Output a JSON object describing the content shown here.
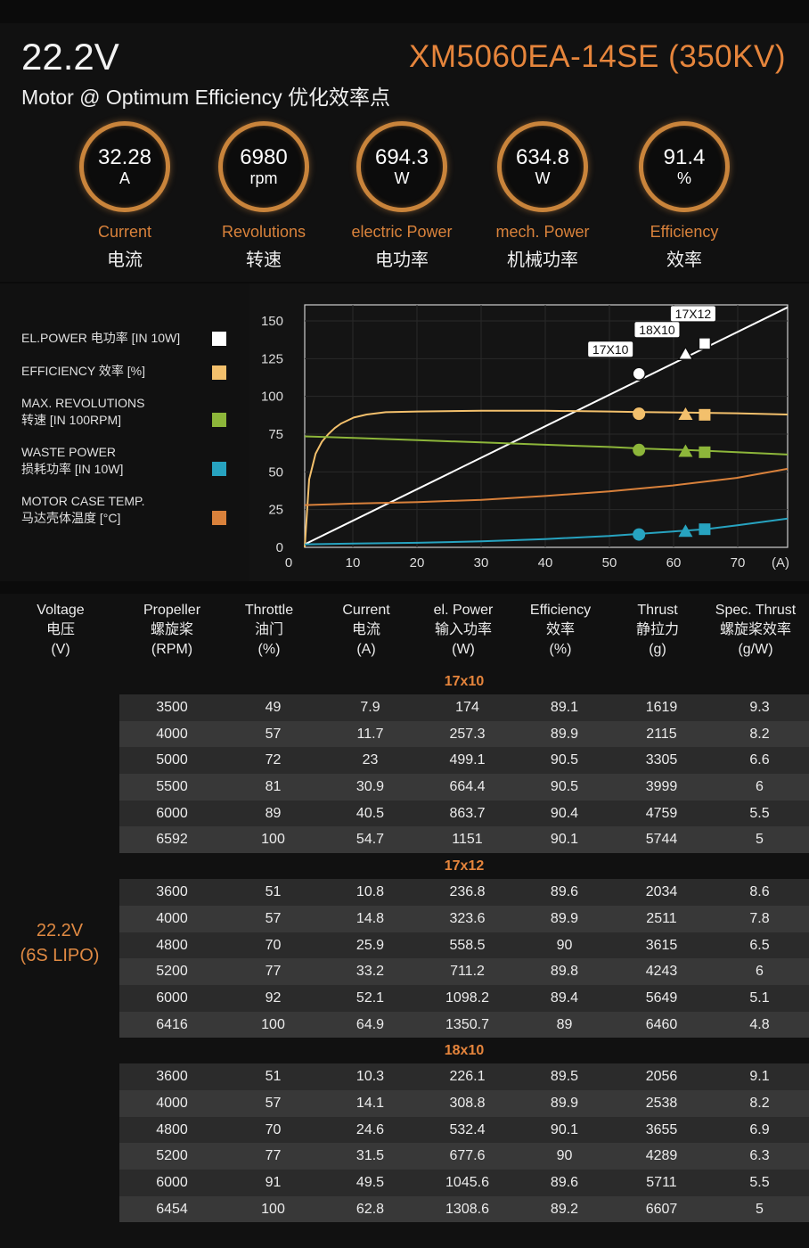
{
  "header": {
    "voltage": "22.2V",
    "subtitle": "Motor @ Optimum Efficiency  优化效率点",
    "model": "XM5060EA-14SE (350KV)"
  },
  "metrics": [
    {
      "value": "32.28",
      "unit": "A",
      "en": "Current",
      "cn": "电流"
    },
    {
      "value": "6980",
      "unit": "rpm",
      "en": "Revolutions",
      "cn": "转速"
    },
    {
      "value": "694.3",
      "unit": "W",
      "en": "electric Power",
      "cn": "电功率"
    },
    {
      "value": "634.8",
      "unit": "W",
      "en": "mech. Power",
      "cn": "机械功率"
    },
    {
      "value": "91.4",
      "unit": "%",
      "en": "Efficiency",
      "cn": "效率"
    }
  ],
  "legend": [
    {
      "line1": "EL.POWER 电功率 [IN 10W]",
      "line2": "",
      "color": "#ffffff"
    },
    {
      "line1": "EFFICIENCY 效率 [%]",
      "line2": "",
      "color": "#f3c06c"
    },
    {
      "line1": "MAX. REVOLUTIONS",
      "line2": "转速 [IN 100RPM]",
      "color": "#8db63a"
    },
    {
      "line1": "WASTE POWER",
      "line2": "损耗功率 [IN 10W]",
      "color": "#27a3c0"
    },
    {
      "line1": "MOTOR CASE TEMP.",
      "line2": "马达壳体温度 [°C]",
      "color": "#d9813b"
    }
  ],
  "chart_data": {
    "type": "line",
    "xlabel": "(A)",
    "ylabel": "",
    "xlim": [
      0,
      78
    ],
    "ylim": [
      0,
      160
    ],
    "x_ticks": [
      0,
      10,
      20,
      30,
      40,
      50,
      60,
      70
    ],
    "y_ticks": [
      0,
      25,
      50,
      75,
      100,
      125,
      150
    ],
    "grid": true,
    "series": [
      {
        "name": "EL.POWER 电功率 [IN 10W]",
        "color": "#ffffff",
        "x": [
          2.3,
          78
        ],
        "y": [
          2,
          159
        ]
      },
      {
        "name": "EFFICIENCY 效率 [%]",
        "color": "#f3c06c",
        "x": [
          2.3,
          3,
          4,
          5,
          6,
          7,
          8,
          10,
          12,
          15,
          20,
          30,
          40,
          50,
          55,
          62,
          65,
          70,
          78
        ],
        "y": [
          0,
          45,
          62,
          70,
          75,
          79,
          82,
          86,
          88,
          89.5,
          90,
          90.5,
          90.5,
          90,
          89.6,
          89.3,
          89.1,
          88.8,
          88
        ]
      },
      {
        "name": "MAX. REVOLUTIONS",
        "color": "#8db63a",
        "x": [
          0,
          10,
          20,
          30,
          40,
          50,
          55,
          62,
          65,
          70,
          78
        ],
        "y": [
          73.5,
          72.5,
          71,
          69.5,
          68,
          66.5,
          65.5,
          64.5,
          64,
          63,
          61.5
        ]
      },
      {
        "name": "WASTE POWER",
        "color": "#27a3c0",
        "x": [
          2.3,
          10,
          20,
          30,
          40,
          50,
          55,
          60,
          65,
          70,
          78
        ],
        "y": [
          2,
          2.5,
          3,
          4,
          5.5,
          7.5,
          9,
          10.5,
          12,
          14.5,
          19
        ]
      },
      {
        "name": "MOTOR CASE TEMP.",
        "color": "#d9813b",
        "x": [
          0,
          10,
          20,
          30,
          40,
          50,
          60,
          70,
          78
        ],
        "y": [
          28,
          29,
          30,
          31.5,
          34,
          37,
          41,
          46,
          52
        ]
      }
    ],
    "markers": [
      {
        "label": "17X10",
        "shape": "circle",
        "x": 54.7,
        "points": [
          115,
          88.5,
          64.5,
          8.5
        ]
      },
      {
        "label": "18X10",
        "shape": "triangle",
        "x": 62,
        "points": [
          128,
          88,
          63.5,
          10.5
        ]
      },
      {
        "label": "17X12",
        "shape": "square",
        "x": 65,
        "points": [
          135,
          87.8,
          63,
          12
        ]
      }
    ]
  },
  "table": {
    "columns": [
      {
        "en": "Voltage",
        "cn": "电压",
        "unit": "(V)"
      },
      {
        "en": "Propeller",
        "cn": "螺旋桨",
        "unit": "(RPM)"
      },
      {
        "en": "Throttle",
        "cn": "油门",
        "unit": "(%)"
      },
      {
        "en": "Current",
        "cn": "电流",
        "unit": "(A)"
      },
      {
        "en": "el. Power",
        "cn": "输入功率",
        "unit": "(W)"
      },
      {
        "en": "Efficiency",
        "cn": "效率",
        "unit": "(%)"
      },
      {
        "en": "Thrust",
        "cn": "静拉力",
        "unit": "(g)"
      },
      {
        "en": "Spec. Thrust",
        "cn": "螺旋桨效率",
        "unit": "(g/W)"
      }
    ],
    "voltage_line1": "22.2V",
    "voltage_line2": "(6S LIPO)",
    "groups": [
      {
        "title": "17x10",
        "rows": [
          [
            "3500",
            "49",
            "7.9",
            "174",
            "89.1",
            "1619",
            "9.3"
          ],
          [
            "4000",
            "57",
            "11.7",
            "257.3",
            "89.9",
            "2115",
            "8.2"
          ],
          [
            "5000",
            "72",
            "23",
            "499.1",
            "90.5",
            "3305",
            "6.6"
          ],
          [
            "5500",
            "81",
            "30.9",
            "664.4",
            "90.5",
            "3999",
            "6"
          ],
          [
            "6000",
            "89",
            "40.5",
            "863.7",
            "90.4",
            "4759",
            "5.5"
          ],
          [
            "6592",
            "100",
            "54.7",
            "1151",
            "90.1",
            "5744",
            "5"
          ]
        ]
      },
      {
        "title": "17x12",
        "rows": [
          [
            "3600",
            "51",
            "10.8",
            "236.8",
            "89.6",
            "2034",
            "8.6"
          ],
          [
            "4000",
            "57",
            "14.8",
            "323.6",
            "89.9",
            "2511",
            "7.8"
          ],
          [
            "4800",
            "70",
            "25.9",
            "558.5",
            "90",
            "3615",
            "6.5"
          ],
          [
            "5200",
            "77",
            "33.2",
            "711.2",
            "89.8",
            "4243",
            "6"
          ],
          [
            "6000",
            "92",
            "52.1",
            "1098.2",
            "89.4",
            "5649",
            "5.1"
          ],
          [
            "6416",
            "100",
            "64.9",
            "1350.7",
            "89",
            "6460",
            "4.8"
          ]
        ]
      },
      {
        "title": "18x10",
        "rows": [
          [
            "3600",
            "51",
            "10.3",
            "226.1",
            "89.5",
            "2056",
            "9.1"
          ],
          [
            "4000",
            "57",
            "14.1",
            "308.8",
            "89.9",
            "2538",
            "8.2"
          ],
          [
            "4800",
            "70",
            "24.6",
            "532.4",
            "90.1",
            "3655",
            "6.9"
          ],
          [
            "5200",
            "77",
            "31.5",
            "677.6",
            "90",
            "4289",
            "6.3"
          ],
          [
            "6000",
            "91",
            "49.5",
            "1045.6",
            "89.6",
            "5711",
            "5.5"
          ],
          [
            "6454",
            "100",
            "62.8",
            "1308.6",
            "89.2",
            "6607",
            "5"
          ]
        ]
      }
    ]
  }
}
